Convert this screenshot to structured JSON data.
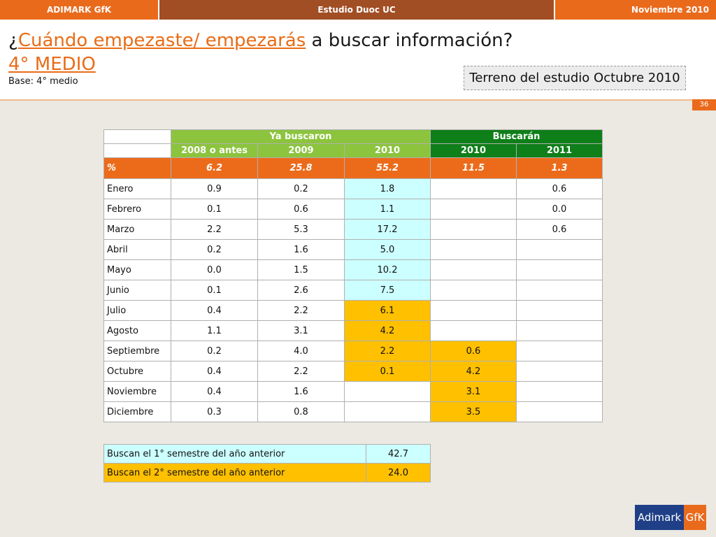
{
  "topbar": {
    "left": "ADIMARK GfK",
    "center": "Estudio Duoc UC",
    "right": "Noviembre 2010"
  },
  "title": {
    "prefix": "¿",
    "highlight": "Cuándo empezaste/ empezarás",
    "rest": " a buscar información?"
  },
  "subtitle": "4° MEDIO",
  "base": "Base: 4° medio",
  "terreno": "Terreno del estudio Octubre 2010",
  "page_number": "36",
  "table": {
    "group_headers": [
      "Ya  buscaron",
      "Buscarán"
    ],
    "columns": [
      "2008 o antes",
      "2009",
      "2010",
      "2010",
      "2011"
    ],
    "pct_label": "%",
    "pct_values": [
      "6.2",
      "25.8",
      "55.2",
      "11.5",
      "1.3"
    ],
    "rows": [
      {
        "label": "Enero",
        "values": [
          "0.9",
          "0.2",
          "1.8",
          "",
          "0.6"
        ]
      },
      {
        "label": "Febrero",
        "values": [
          "0.1",
          "0.6",
          "1.1",
          "",
          "0.0"
        ]
      },
      {
        "label": "Marzo",
        "values": [
          "2.2",
          "5.3",
          "17.2",
          "",
          "0.6"
        ]
      },
      {
        "label": "Abril",
        "values": [
          "0.2",
          "1.6",
          "5.0",
          "",
          ""
        ]
      },
      {
        "label": "Mayo",
        "values": [
          "0.0",
          "1.5",
          "10.2",
          "",
          ""
        ]
      },
      {
        "label": "Junio",
        "values": [
          "0.1",
          "2.6",
          "7.5",
          "",
          ""
        ]
      },
      {
        "label": "Julio",
        "values": [
          "0.4",
          "2.2",
          "6.1",
          "",
          ""
        ]
      },
      {
        "label": "Agosto",
        "values": [
          "1.1",
          "3.1",
          "4.2",
          "",
          ""
        ]
      },
      {
        "label": "Septiembre",
        "values": [
          "0.2",
          "4.0",
          "2.2",
          "0.6",
          ""
        ]
      },
      {
        "label": "Octubre",
        "values": [
          "0.4",
          "2.2",
          "0.1",
          "4.2",
          ""
        ]
      },
      {
        "label": "Noviembre",
        "values": [
          "0.4",
          "1.6",
          "",
          "3.1",
          ""
        ]
      },
      {
        "label": "Diciembre",
        "values": [
          "0.3",
          "0.8",
          "",
          "3.5",
          ""
        ]
      }
    ]
  },
  "summary": [
    {
      "label": "Buscan el 1° semestre del año anterior",
      "value": "42.7"
    },
    {
      "label": "Buscan el 2° semestre del año anterior",
      "value": "24.0"
    }
  ],
  "logo": {
    "left": "Adimark",
    "right": "GfK"
  },
  "colors": {
    "orange": "#ea6a1c",
    "light_green": "#8cc43e",
    "dark_green": "#0f7f19",
    "light_blue": "#ccffff",
    "yellow": "#ffc000"
  }
}
